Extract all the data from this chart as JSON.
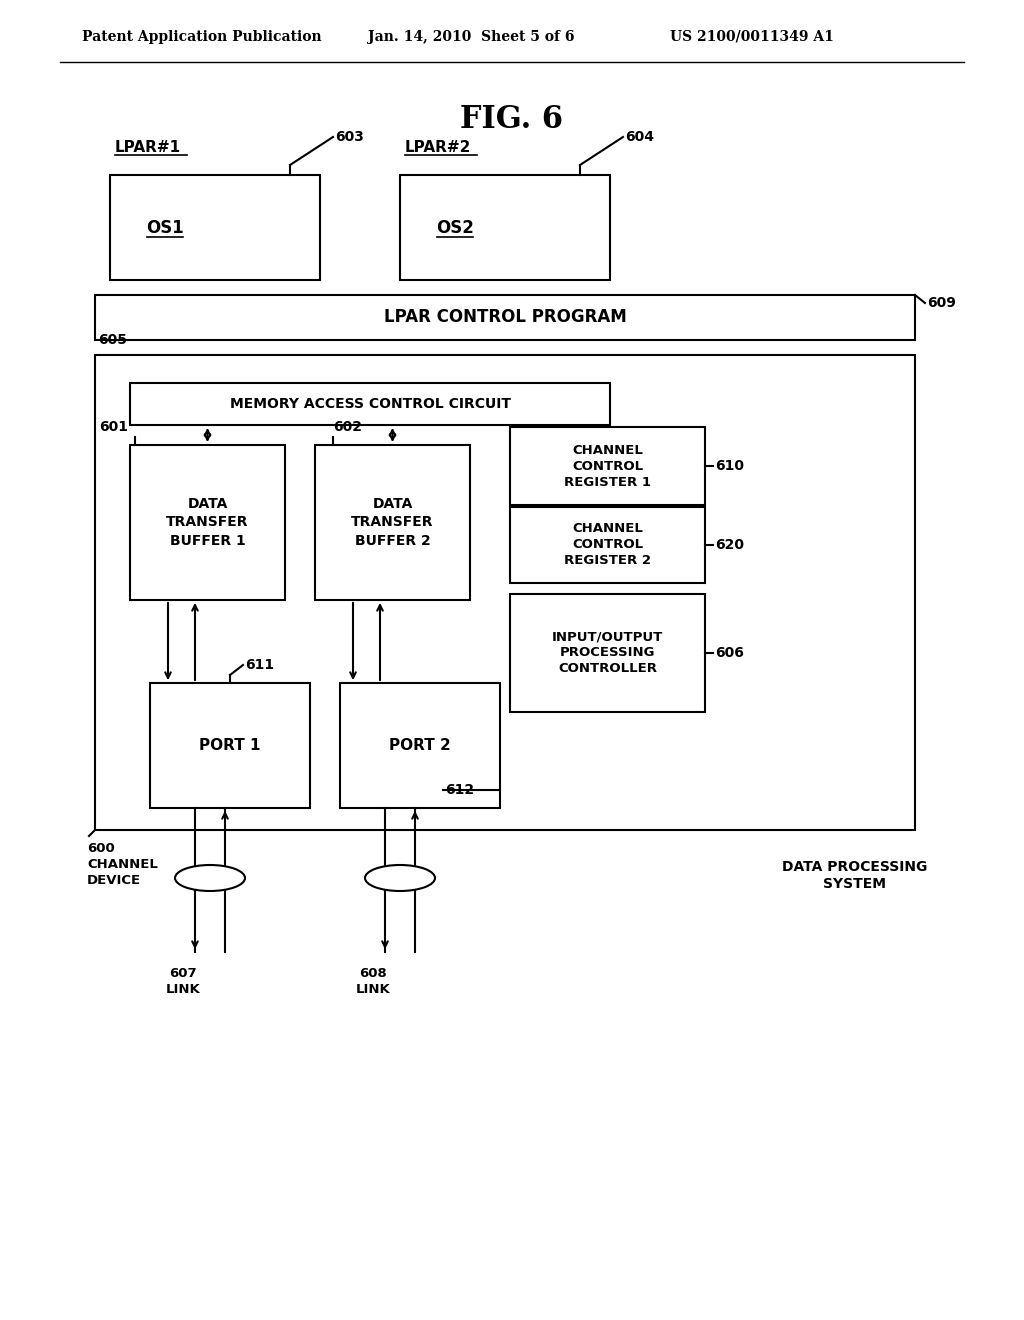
{
  "bg_color": "#ffffff",
  "title": "FIG. 6",
  "header_left": "Patent Application Publication",
  "header_mid": "Jan. 14, 2010  Sheet 5 of 6",
  "header_right": "US 2100/0011349 A1",
  "lpar1_label": "LPAR#1",
  "lpar2_label": "LPAR#2",
  "os1_label": "OS1",
  "os2_label": "OS2",
  "lpar_ctrl_label": "LPAR CONTROL PROGRAM",
  "macc_label": "MEMORY ACCESS CONTROL CIRCUIT",
  "dtb1_label": "DATA\nTRANSFER\nBUFFER 1",
  "dtb2_label": "DATA\nTRANSFER\nBUFFER 2",
  "ccr1_label": "CHANNEL\nCONTROL\nREGISTER 1",
  "ccr2_label": "CHANNEL\nCONTROL\nREGISTER 2",
  "iopc_label": "INPUT/OUTPUT\nPROCESSING\nCONTROLLER",
  "port1_label": "PORT 1",
  "port2_label": "PORT 2",
  "channel_device_label": "600\nCHANNEL\nDEVICE",
  "data_proc_label": "DATA PROCESSING\nSYSTEM",
  "ref_603": "603",
  "ref_604": "604",
  "ref_609": "609",
  "ref_605": "605",
  "ref_601": "601",
  "ref_602": "602",
  "ref_610": "610",
  "ref_620": "620",
  "ref_606": "606",
  "ref_611": "611",
  "ref_612": "612",
  "ref_607": "607\nLINK",
  "ref_608": "608\nLINK",
  "line_color": "#000000",
  "box_fill": "#ffffff",
  "font_color": "#000000"
}
